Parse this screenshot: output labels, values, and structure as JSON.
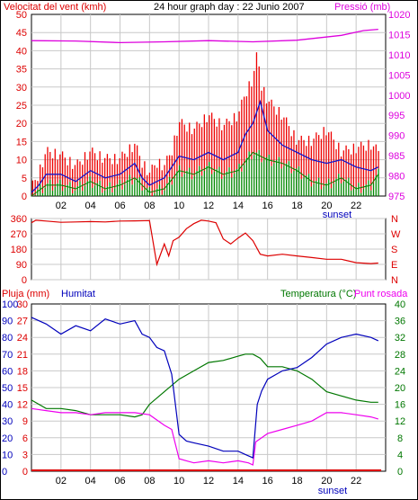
{
  "header": {
    "wind_title": "Velocitat del vent (kmh)",
    "graph_title": "24 hour graph day : 22 Junio 2007",
    "pressure_title": "Pressió (mb)"
  },
  "colors": {
    "gust": "#ee0000",
    "wind": "#1515c8",
    "wind_low": "#008800",
    "pressure": "#dd00dd",
    "direction": "#dd0000",
    "rain": "#dd0000",
    "humidity": "#0000bb",
    "temperature": "#007700",
    "dewpoint": "#ee00ee",
    "grid": "#c8c8c8",
    "axis_left": "#dd0000",
    "axis_right_pressure": "#dd00dd",
    "axis_right_temp": "#007700"
  },
  "chart_data": [
    {
      "type": "line",
      "x_ticks": [
        "02",
        "04",
        "06",
        "08",
        "10",
        "12",
        "14",
        "16",
        "18",
        "20",
        "22"
      ],
      "sunset_label": "sunset",
      "y_left_ticks": [
        "0",
        "5",
        "10",
        "15",
        "20",
        "25",
        "30",
        "35",
        "40",
        "45",
        "50"
      ],
      "y_right_ticks": [
        "975",
        "980",
        "985",
        "990",
        "995",
        "1000",
        "1005",
        "1010",
        "1015",
        "1020"
      ],
      "ylim_left": [
        0,
        50
      ],
      "ylim_right": [
        975,
        1020
      ],
      "pressure": {
        "name": "Pressió (mb)",
        "hours": [
          0,
          3,
          6,
          9,
          12,
          15,
          18,
          21,
          22.5,
          23.5
        ],
        "values": [
          1013.5,
          1013.4,
          1013.0,
          1013.2,
          1013.5,
          1013.2,
          1013.6,
          1014.8,
          1016.0,
          1016.3
        ]
      },
      "gust_envelope": {
        "name": "Velocitat del vent (kmh)",
        "hours": [
          0,
          0.5,
          1,
          2,
          3,
          4,
          5,
          6,
          7,
          7.5,
          8,
          8.5,
          9,
          9.5,
          10,
          11,
          12,
          13,
          14,
          14.5,
          15,
          15.3,
          15.6,
          16,
          17,
          18,
          19,
          20,
          21,
          22,
          23,
          23.5
        ],
        "values": [
          2,
          6,
          12,
          11,
          8,
          12,
          10,
          10,
          14,
          9,
          6,
          9,
          8,
          12,
          20,
          18,
          22,
          19,
          22,
          28,
          32,
          39,
          30,
          26,
          22,
          15,
          15,
          18,
          12,
          13,
          14,
          12
        ]
      },
      "wind_avg": {
        "hours": [
          0,
          0.5,
          1,
          2,
          3,
          4,
          5,
          6,
          7,
          7.5,
          8,
          8.5,
          9,
          9.5,
          10,
          11,
          12,
          13,
          14,
          14.5,
          15,
          15.5,
          16,
          17,
          18,
          19,
          20,
          21,
          22,
          23,
          23.5
        ],
        "values": [
          1,
          3,
          6,
          6,
          4,
          7,
          5,
          6,
          9,
          5,
          3,
          4,
          5,
          8,
          11,
          10,
          12,
          10,
          12,
          17,
          20,
          26,
          18,
          14,
          12,
          10,
          9,
          10,
          8,
          7,
          8
        ]
      },
      "wind_low": {
        "hours": [
          0,
          1,
          2,
          3,
          4,
          5,
          6,
          7,
          8,
          9,
          10,
          11,
          12,
          13,
          14,
          15,
          16,
          17,
          18,
          19,
          20,
          21,
          22,
          23,
          23.5
        ],
        "values": [
          0,
          3,
          3,
          2,
          4,
          2,
          3,
          5,
          1,
          2,
          7,
          6,
          8,
          6,
          7,
          12,
          10,
          9,
          7,
          4,
          3,
          5,
          2,
          3,
          6
        ]
      }
    },
    {
      "type": "line",
      "y_left_ticks": [
        "360",
        "270",
        "180",
        "90",
        "0"
      ],
      "y_right_labels": [
        "N",
        "W",
        "S",
        "E",
        "N"
      ],
      "ylim": [
        0,
        360
      ],
      "direction": {
        "hours": [
          0,
          0.3,
          1,
          2,
          3,
          4,
          5,
          6,
          7,
          8,
          8.5,
          9,
          9.3,
          9.6,
          10,
          10.5,
          11,
          11.5,
          12,
          12.5,
          13,
          13.5,
          14,
          14.5,
          15,
          15.5,
          16,
          17,
          18,
          19,
          20,
          21,
          22,
          23,
          23.5
        ],
        "values": [
          335,
          350,
          345,
          338,
          340,
          342,
          340,
          345,
          346,
          348,
          90,
          210,
          140,
          230,
          250,
          300,
          330,
          350,
          345,
          335,
          240,
          210,
          245,
          275,
          230,
          150,
          140,
          150,
          140,
          130,
          120,
          120,
          100,
          95,
          98
        ]
      }
    },
    {
      "type": "line",
      "y_left_ticks": [
        "0",
        "10",
        "20",
        "30",
        "40",
        "50",
        "60",
        "70",
        "80",
        "90",
        "100"
      ],
      "y_rain_ticks": [
        "0",
        "3",
        "6",
        "9",
        "12",
        "15",
        "18",
        "21",
        "24",
        "27",
        "30"
      ],
      "y_right_ticks": [
        "0",
        "4",
        "8",
        "12",
        "16",
        "20",
        "24",
        "28",
        "32",
        "36",
        "40"
      ],
      "legend_rain": "Pluja (mm)",
      "legend_humidity": "Humitat",
      "legend_temperature": "Temperatura (°C)",
      "legend_dewpoint": "Punt rosada",
      "humidity": {
        "name": "Humitat",
        "hours": [
          0,
          1,
          2,
          3,
          4,
          5,
          6,
          7,
          7.5,
          8,
          8.5,
          9,
          9.5,
          10,
          10.5,
          11,
          12,
          13,
          14,
          14.5,
          15,
          15.3,
          15.6,
          16,
          17,
          18,
          19,
          19.5,
          20,
          21,
          22,
          23,
          23.5
        ],
        "values": [
          92,
          88,
          82,
          87,
          84,
          91,
          88,
          90,
          82,
          80,
          74,
          72,
          58,
          22,
          18,
          17,
          15,
          12,
          12,
          10,
          8,
          40,
          48,
          55,
          60,
          62,
          68,
          72,
          76,
          80,
          82,
          80,
          78
        ]
      },
      "temperature": {
        "name": "Temperatura (°C)",
        "hours": [
          0,
          1,
          2,
          3,
          4,
          5,
          6,
          7,
          7.5,
          8,
          9,
          10,
          11,
          12,
          13,
          14,
          14.5,
          15,
          15.5,
          16,
          17,
          18,
          19,
          20,
          21,
          22,
          23,
          23.5
        ],
        "values": [
          17,
          15,
          15,
          14.5,
          13.5,
          13.5,
          13.5,
          13,
          13.5,
          16,
          19,
          22,
          24,
          26,
          26.5,
          27.5,
          28,
          28,
          27,
          25,
          25,
          24,
          22,
          19,
          18,
          17,
          16.5,
          16.5
        ]
      },
      "dewpoint": {
        "name": "Punt rosada",
        "hours": [
          0,
          1,
          2,
          3,
          4,
          5,
          6,
          7,
          8,
          9,
          9.5,
          10,
          10.5,
          11,
          12,
          13,
          14,
          14.7,
          15,
          15.2,
          15.6,
          16,
          17,
          18,
          19,
          20,
          21,
          22,
          23,
          23.5
        ],
        "values": [
          15,
          14.5,
          14,
          14,
          13.5,
          14,
          14,
          14,
          13.5,
          11,
          10,
          3,
          2.5,
          2,
          2.5,
          2,
          2.5,
          2,
          1.5,
          7,
          8,
          9,
          10,
          11,
          12,
          14,
          14,
          13.5,
          13,
          12.5
        ]
      },
      "rain": {
        "name": "Pluja (mm)",
        "hours": [
          0,
          23.7
        ],
        "values": [
          0,
          0
        ]
      }
    }
  ]
}
